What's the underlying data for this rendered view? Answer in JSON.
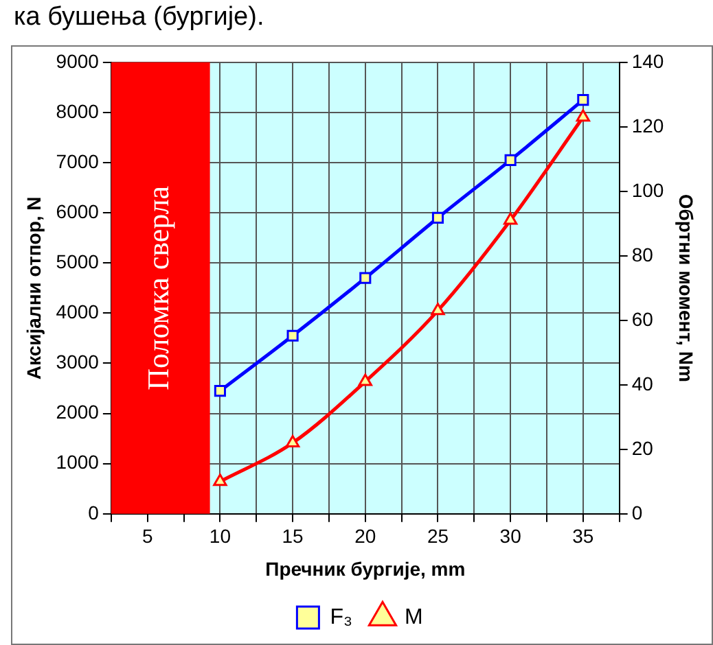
{
  "chart_data": {
    "type": "line",
    "annotations": [
      "ка бушења (бургије)."
    ],
    "xlabel": "Пречник бургије, mm",
    "ylabel": "Аксијални отпор, N",
    "y2label": "Обртни момент, Nm",
    "x": [
      10,
      15,
      20,
      25,
      30,
      35
    ],
    "series": [
      {
        "name": "F₃",
        "color": "#0000ff",
        "marker": "square",
        "values": [
          2450,
          3550,
          4700,
          5900,
          7050,
          8250
        ]
      },
      {
        "name": "M",
        "color": "#ff0000",
        "marker": "triangle",
        "axis": "y2",
        "values": [
          10,
          22,
          41,
          63,
          91,
          123
        ]
      }
    ],
    "xlim": [
      2.5,
      37.5
    ],
    "xticks": [
      {
        "value": 2.5,
        "label": null
      },
      5,
      {
        "value": 7.5,
        "label": null
      },
      10,
      {
        "value": 12.5,
        "label": null
      },
      15,
      {
        "value": 17.5,
        "label": null
      },
      20,
      {
        "value": 22.5,
        "label": null
      },
      25,
      {
        "value": 27.5,
        "label": null
      },
      30,
      {
        "value": 32.5,
        "label": null
      },
      35,
      {
        "value": 37.5,
        "label": null
      }
    ],
    "ylim": [
      0,
      9000
    ],
    "yticks": [
      0,
      1000,
      2000,
      3000,
      4000,
      5000,
      6000,
      7000,
      8000,
      9000
    ],
    "y2lim": [
      0,
      140
    ],
    "y2ticks": [
      0,
      20,
      40,
      60,
      80,
      100,
      120,
      140
    ],
    "bands": [
      {
        "axis": "x",
        "from": 2.5,
        "to": 9.3,
        "label": "Поломка сверла",
        "color": "#ff0000"
      }
    ],
    "grid": true,
    "legend": "bottom",
    "line_style": "solid"
  }
}
